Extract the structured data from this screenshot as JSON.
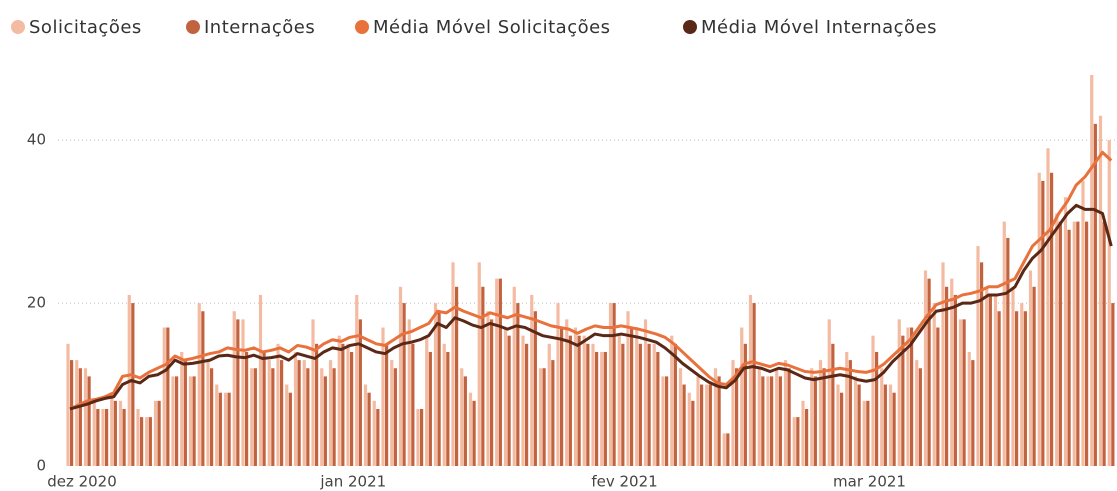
{
  "chart_data": {
    "type": "bar-line",
    "categories": [
      "dez 2020",
      null,
      null,
      null,
      null,
      null,
      null,
      null,
      null,
      null,
      null,
      null,
      null,
      null,
      null,
      null,
      null,
      null,
      null,
      null,
      null,
      null,
      null,
      null,
      null,
      null,
      null,
      null,
      null,
      null,
      null,
      "jan 2021",
      null,
      null,
      null,
      null,
      null,
      null,
      null,
      null,
      null,
      null,
      null,
      null,
      null,
      null,
      null,
      null,
      null,
      null,
      null,
      null,
      null,
      null,
      null,
      null,
      null,
      null,
      null,
      null,
      null,
      null,
      "fev 2021",
      null,
      null,
      null,
      null,
      null,
      null,
      null,
      null,
      null,
      null,
      null,
      null,
      null,
      null,
      null,
      null,
      null,
      null,
      null,
      null,
      null,
      null,
      null,
      null,
      null,
      null,
      null,
      "mar 2021",
      null,
      null,
      null,
      null,
      null,
      null,
      null,
      null,
      null,
      null,
      null,
      null,
      null,
      null,
      null,
      null,
      null,
      null,
      null,
      null,
      null,
      null,
      null,
      null,
      null,
      null,
      null,
      null,
      null
    ],
    "series": [
      {
        "name": "Solicitações",
        "kind": "bar",
        "color": "#f4bba3",
        "values": [
          15,
          13,
          12,
          8,
          7,
          9,
          8,
          21,
          7,
          6,
          8,
          17,
          11,
          14,
          11,
          20,
          13,
          10,
          9,
          19,
          18,
          12,
          21,
          13,
          15,
          10,
          14,
          13,
          18,
          12,
          13,
          16,
          15,
          21,
          10,
          8,
          17,
          13,
          22,
          18,
          7,
          16,
          20,
          15,
          25,
          12,
          9,
          25,
          19,
          23,
          17,
          22,
          16,
          21,
          12,
          15,
          20,
          18,
          17,
          16,
          15,
          14,
          20,
          16,
          19,
          17,
          18,
          15,
          11,
          16,
          12,
          9,
          11,
          10,
          12,
          4,
          13,
          17,
          21,
          12,
          11,
          12,
          13,
          6,
          8,
          12,
          13,
          18,
          10,
          14,
          11,
          8,
          16,
          12,
          10,
          18,
          17,
          13,
          24,
          20,
          25,
          23,
          18,
          14,
          27,
          22,
          21,
          30,
          22,
          20,
          24,
          36,
          39,
          31,
          33,
          30,
          35,
          48,
          43,
          40
        ]
      },
      {
        "name": "Internações",
        "kind": "bar",
        "color": "#c2633f",
        "values": [
          13,
          12,
          11,
          7,
          7,
          8,
          7,
          20,
          6,
          6,
          8,
          17,
          11,
          13,
          11,
          19,
          12,
          9,
          9,
          18,
          14,
          12,
          14,
          12,
          13,
          9,
          13,
          12,
          15,
          11,
          12,
          15,
          14,
          18,
          9,
          7,
          15,
          12,
          20,
          15,
          7,
          14,
          19,
          14,
          22,
          11,
          8,
          22,
          18,
          23,
          16,
          20,
          15,
          19,
          12,
          13,
          17,
          16,
          16,
          15,
          14,
          14,
          20,
          15,
          17,
          15,
          15,
          14,
          11,
          15,
          10,
          8,
          10,
          10,
          11,
          4,
          12,
          15,
          20,
          11,
          11,
          11,
          12,
          6,
          7,
          11,
          12,
          15,
          9,
          13,
          10,
          8,
          14,
          10,
          9,
          16,
          17,
          12,
          23,
          17,
          22,
          21,
          18,
          13,
          25,
          21,
          19,
          28,
          19,
          19,
          22,
          35,
          36,
          30,
          29,
          30,
          30,
          42,
          30,
          20
        ]
      },
      {
        "name": "Média Móvel Solicitações",
        "kind": "line",
        "color": "#e8713c",
        "values": [
          7,
          7.5,
          8,
          8.2,
          8.5,
          9,
          11,
          11.2,
          10.8,
          11.5,
          12,
          12.5,
          13.5,
          13,
          13.2,
          13.5,
          13.8,
          14,
          14.5,
          14.3,
          14.2,
          14.5,
          14,
          14.2,
          14.5,
          14,
          14.8,
          14.6,
          14.2,
          15,
          15.5,
          15.3,
          15.8,
          16,
          15.5,
          15,
          14.8,
          15.5,
          16.2,
          16.5,
          17,
          17.5,
          19,
          18.8,
          19.5,
          19,
          18.6,
          18.2,
          18.8,
          18.5,
          18.2,
          18.6,
          18.3,
          18,
          17.6,
          17.2,
          17,
          16.8,
          16.3,
          16.8,
          17.2,
          17,
          17,
          17.2,
          17,
          16.8,
          16.5,
          16.2,
          15.8,
          15,
          14,
          13,
          12,
          11,
          10.2,
          10,
          11,
          12.5,
          12.8,
          12.5,
          12.2,
          12.6,
          12.4,
          12,
          11.6,
          11.5,
          11.6,
          11.8,
          12,
          11.8,
          11.6,
          11.5,
          11.8,
          12.5,
          13.5,
          14.5,
          15.5,
          17,
          18.5,
          19.8,
          20.2,
          20.5,
          21,
          21.2,
          21.5,
          22,
          22,
          22.5,
          23,
          25,
          27,
          28,
          29,
          31,
          32.5,
          34.5,
          35.5,
          37,
          38.5,
          37.5
        ]
      },
      {
        "name": "Média Móvel Internações",
        "kind": "line",
        "color": "#5a2816",
        "values": [
          7,
          7.3,
          7.6,
          8,
          8.3,
          8.5,
          10,
          10.5,
          10.2,
          11,
          11.2,
          11.8,
          13,
          12.5,
          12.6,
          12.8,
          13,
          13.5,
          13.6,
          13.4,
          13.3,
          13.6,
          13.2,
          13.3,
          13.5,
          13,
          13.8,
          13.5,
          13.2,
          14,
          14.5,
          14.3,
          14.8,
          15,
          14.5,
          14,
          13.8,
          14.5,
          15,
          15.2,
          15.5,
          16,
          17.5,
          17,
          18.2,
          17.8,
          17.3,
          17,
          17.5,
          17.2,
          16.8,
          17.2,
          17,
          16.5,
          16,
          15.8,
          15.6,
          15.3,
          14.8,
          15.5,
          16.2,
          16,
          16,
          16.2,
          16,
          15.8,
          15.5,
          15.2,
          14.5,
          13.6,
          12.6,
          11.8,
          11,
          10.3,
          9.8,
          9.6,
          10.5,
          12,
          12.2,
          12,
          11.6,
          12,
          11.8,
          11.3,
          10.8,
          10.6,
          10.8,
          11,
          11.2,
          11,
          10.6,
          10.4,
          10.6,
          11.5,
          12.8,
          13.8,
          14.8,
          16.3,
          17.8,
          19,
          19.2,
          19.5,
          20,
          20,
          20.3,
          21,
          21,
          21.2,
          22,
          24,
          25.5,
          26.5,
          28,
          29.5,
          31,
          32,
          31.5,
          31.5,
          31,
          27
        ]
      }
    ],
    "ylim": [
      0,
      48
    ],
    "yticks": [
      0,
      20,
      40
    ],
    "grid": true,
    "legend": "top"
  }
}
